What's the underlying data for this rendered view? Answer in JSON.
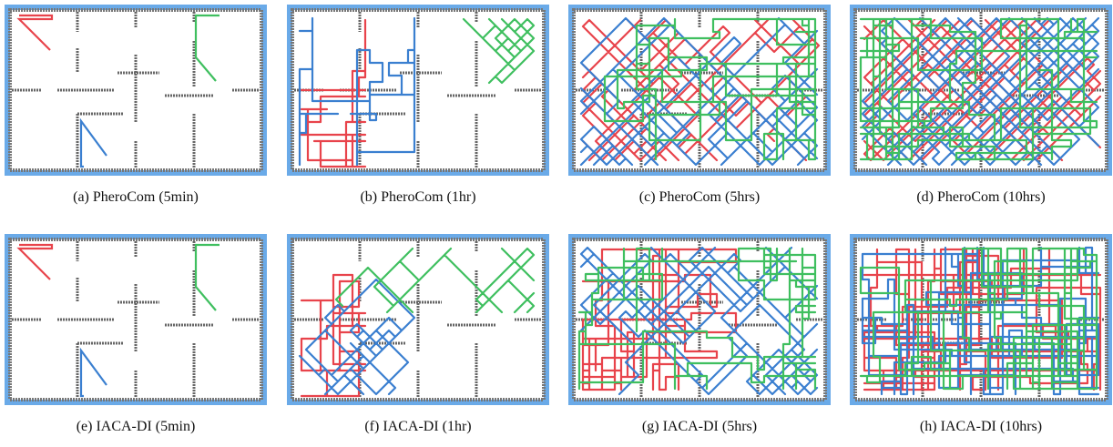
{
  "panels": [
    {
      "caption": "(a) PheroCom (5min)"
    },
    {
      "caption": "(b) PheroCom (1hr)"
    },
    {
      "caption": "(c) PheroCom (5hrs)"
    },
    {
      "caption": "(d) PheroCom (10hrs)"
    },
    {
      "caption": "(e) IACA-DI (5min)"
    },
    {
      "caption": "(f) IACA-DI (1hr)"
    },
    {
      "caption": "(g) IACA-DI (5hrs)"
    },
    {
      "caption": "(h) IACA-DI (10hrs)"
    }
  ]
}
